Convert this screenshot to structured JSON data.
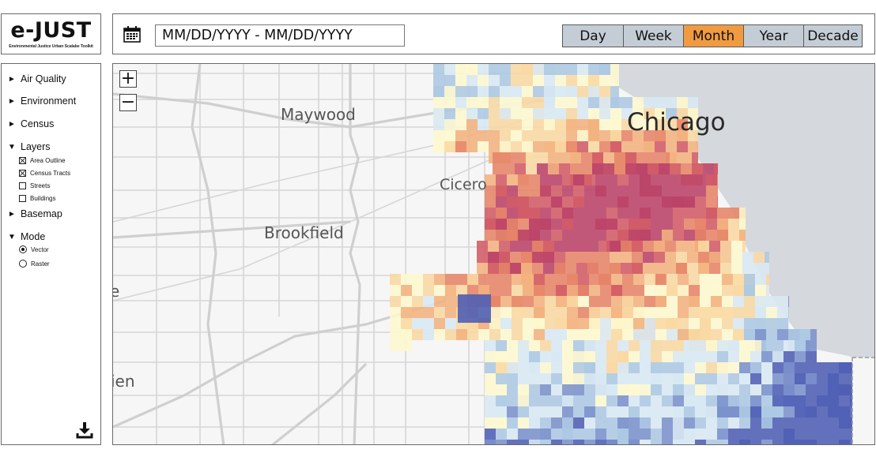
{
  "app": {
    "logo_title": "e-JUST",
    "logo_subtitle": "Environmental Justice Urban Scalabe Toolkit"
  },
  "sidebar": {
    "sections": [
      {
        "label": "Air Quality",
        "expanded": false
      },
      {
        "label": "Environment",
        "expanded": false
      },
      {
        "label": "Census",
        "expanded": false
      },
      {
        "label": "Layers",
        "expanded": true,
        "items": [
          {
            "label": "Area Outline",
            "checked": true
          },
          {
            "label": "Census Tracts",
            "checked": true
          },
          {
            "label": "Streets",
            "checked": false
          },
          {
            "label": "Buildings",
            "checked": false
          }
        ]
      },
      {
        "label": "Basemap",
        "expanded": false
      },
      {
        "label": "Mode",
        "expanded": true,
        "options": [
          {
            "label": "Vector",
            "selected": true
          },
          {
            "label": "Raster",
            "selected": false
          }
        ]
      }
    ],
    "collapsed_glyph": "►",
    "expanded_glyph": "▼",
    "download_icon": "download-icon"
  },
  "topbar": {
    "calendar_icon": "calendar-icon",
    "date_range_value": "MM/DD/YYYY - MM/DD/YYYY",
    "time_scale": {
      "options": [
        "Day",
        "Week",
        "Month",
        "Year",
        "Decade"
      ],
      "selected": "Month",
      "active_color": "#f19b41",
      "inactive_color": "#c4cdd6"
    }
  },
  "map": {
    "zoom_in_label": "+",
    "zoom_out_label": "−",
    "places": [
      {
        "name": "Maywood"
      },
      {
        "name": "Chicago"
      },
      {
        "name": "Cicero"
      },
      {
        "name": "Brookfield"
      },
      {
        "name": "e"
      },
      {
        "name": "ien"
      }
    ],
    "lake_color": "#d5d8dd",
    "land_color": "#f6f6f6",
    "palette": [
      "#4f5fb4",
      "#7b91cc",
      "#adc8e2",
      "#d8e8f2",
      "#fef8cf",
      "#f9d8a3",
      "#f2b27f",
      "#e68468",
      "#d15b67",
      "#bb4268"
    ]
  }
}
